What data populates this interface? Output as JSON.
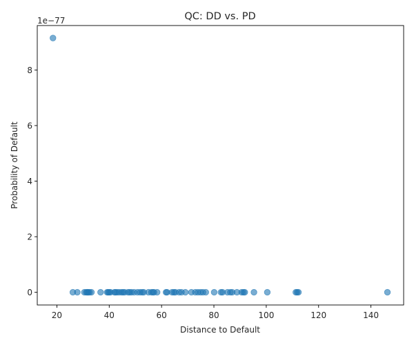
{
  "chart_data": {
    "type": "scatter",
    "title": "QC: DD vs. PD",
    "xlabel": "Distance to Default",
    "ylabel": "Probability of Default",
    "y_offset_text": "1e−77",
    "xlim": [
      12.5,
      152.5
    ],
    "ylim": [
      -0.457,
      9.6
    ],
    "x_ticks": [
      20,
      40,
      60,
      80,
      100,
      120,
      140
    ],
    "x_tick_labels": [
      "20",
      "40",
      "60",
      "80",
      "100",
      "120",
      "140"
    ],
    "y_ticks": [
      0,
      2,
      4,
      6,
      8
    ],
    "y_tick_labels": [
      "0",
      "2",
      "4",
      "6",
      "8"
    ],
    "grid": false,
    "marker_color": "#1f77b4",
    "marker_alpha": 0.6,
    "x": [
      18.5,
      26.1,
      27.8,
      30.5,
      31.2,
      31.6,
      32.0,
      32.5,
      33.2,
      36.7,
      39.2,
      39.6,
      40.0,
      40.5,
      42.0,
      42.4,
      43.0,
      43.8,
      44.7,
      45.3,
      45.9,
      47.2,
      47.8,
      48.5,
      49.5,
      50.8,
      51.8,
      52.6,
      53.2,
      55.0,
      56.1,
      56.7,
      57.1,
      58.3,
      61.7,
      62.1,
      64.0,
      64.7,
      65.3,
      66.7,
      67.6,
      69.1,
      71.4,
      72.9,
      73.9,
      74.9,
      75.8,
      76.9,
      80.1,
      82.7,
      83.3,
      85.2,
      86.3,
      87.0,
      88.8,
      90.6,
      91.3,
      91.8,
      95.3,
      100.4,
      111.3,
      111.8,
      112.3,
      146.3
    ],
    "y": [
      9.15,
      0,
      0,
      0,
      0,
      0,
      0,
      0,
      0,
      0,
      0,
      0,
      0,
      0,
      0,
      0,
      0,
      0,
      0,
      0,
      0,
      0,
      0,
      0,
      0,
      0,
      0,
      0,
      0,
      0,
      0,
      0,
      0,
      0,
      0,
      0,
      0,
      0,
      0,
      0,
      0,
      0,
      0,
      0,
      0,
      0,
      0,
      0,
      0,
      0,
      0,
      0,
      0,
      0,
      0,
      0,
      0,
      0,
      0,
      0,
      0,
      0,
      0,
      0
    ]
  }
}
